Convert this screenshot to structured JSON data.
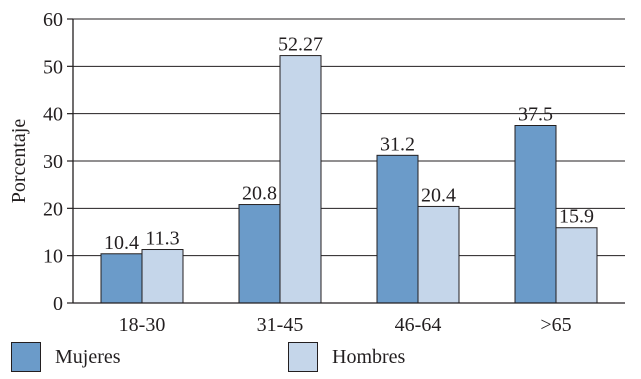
{
  "chart_data": {
    "type": "bar",
    "categories": [
      "18-30",
      "31-45",
      "46-64",
      ">65"
    ],
    "series": [
      {
        "name": "Mujeres",
        "values": [
          10.4,
          20.8,
          31.2,
          37.5
        ],
        "labels": [
          "10.4",
          "20.8",
          "31.2",
          "37.5"
        ],
        "color": "#6b9bc9"
      },
      {
        "name": "Hombres",
        "values": [
          11.3,
          52.27,
          20.4,
          15.9
        ],
        "labels": [
          "11.3",
          "52.27",
          "20.4",
          "15.9"
        ],
        "color": "#c5d6ea"
      }
    ],
    "ylabel": "Porcentaje",
    "xlabel": "",
    "ylim": [
      0,
      60
    ],
    "yticks": [
      0,
      10,
      20,
      30,
      40,
      50,
      60
    ],
    "grid": true,
    "legend_position": "bottom"
  }
}
